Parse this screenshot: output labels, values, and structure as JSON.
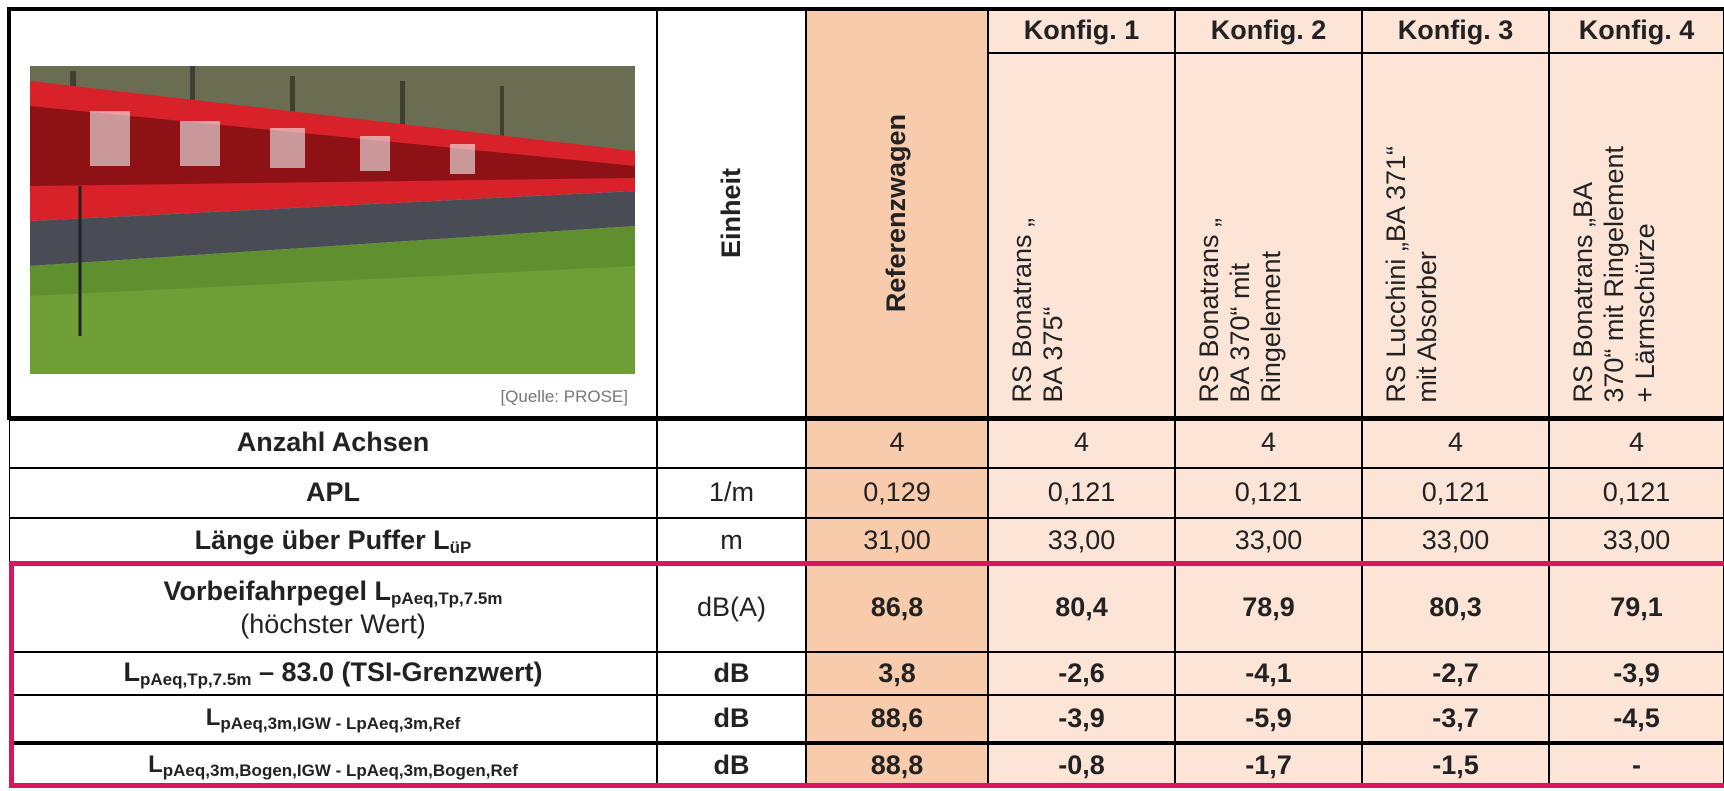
{
  "header": {
    "photo_caption": "[Quelle: PROSE]",
    "unit_header": "Einheit",
    "reference_header": "Referenzwagen",
    "configs": [
      {
        "name": "Konfig. 1",
        "description": [
          "RS Bonatrans „",
          "BA 375“"
        ]
      },
      {
        "name": "Konfig. 2",
        "description": [
          "RS Bonatrans „",
          "BA 370“ mit",
          "Ringelement"
        ]
      },
      {
        "name": "Konfig. 3",
        "description": [
          "RS Lucchini „BA 371“",
          "mit Absorber"
        ]
      },
      {
        "name": "Konfig. 4",
        "description": [
          "RS Bonatrans „BA",
          "370“ mit Ringelement",
          "+ Lärmschürze"
        ]
      }
    ]
  },
  "rows": [
    {
      "label": [
        {
          "text": "Anzahl Achsen"
        }
      ],
      "unit": "",
      "values": [
        "4",
        "4",
        "4",
        "4",
        "4"
      ]
    },
    {
      "label": [
        {
          "text": "APL"
        }
      ],
      "unit": "1/m",
      "values": [
        "0,129",
        "0,121",
        "0,121",
        "0,121",
        "0,121"
      ]
    },
    {
      "label": [
        {
          "text": "Länge über Puffer L"
        },
        {
          "text": "üP",
          "sub": true
        }
      ],
      "unit": "m",
      "values": [
        "31,00",
        "33,00",
        "33,00",
        "33,00",
        "33,00"
      ]
    },
    {
      "label": [
        {
          "text": "Vorbeifahrpegel L"
        },
        {
          "text": "pAeq,Tp,7.5m",
          "sub": true
        }
      ],
      "note": "(höchster Wert)",
      "unit": "dB(A)",
      "values": [
        "86,8",
        "80,4",
        "78,9",
        "80,3",
        "79,1"
      ]
    },
    {
      "label": [
        {
          "text": "L"
        },
        {
          "text": "pAeq,Tp,7.5m",
          "sub": true
        },
        {
          "text": " – 83.0 (TSI-Grenzwert)"
        }
      ],
      "unit": "dB",
      "values": [
        "3,8",
        "-2,6",
        "-4,1",
        "-2,7",
        "-3,9"
      ]
    },
    {
      "label": [
        {
          "text": "L"
        },
        {
          "text": "pAeq,3m,IGW - LpAeq,3m,Ref",
          "sub": true
        }
      ],
      "unit": "dB",
      "values": [
        "88,6",
        "-3,9",
        "-5,9",
        "-3,7",
        "-4,5"
      ]
    },
    {
      "label": [
        {
          "text": "L"
        },
        {
          "text": "pAeq,3m,Bogen,IGW - LpAeq,3m,Bogen,Ref",
          "sub": true
        }
      ],
      "unit": "dB",
      "values": [
        "88,8",
        "-0,8",
        "-1,7",
        "-1,5",
        "-"
      ]
    }
  ]
}
